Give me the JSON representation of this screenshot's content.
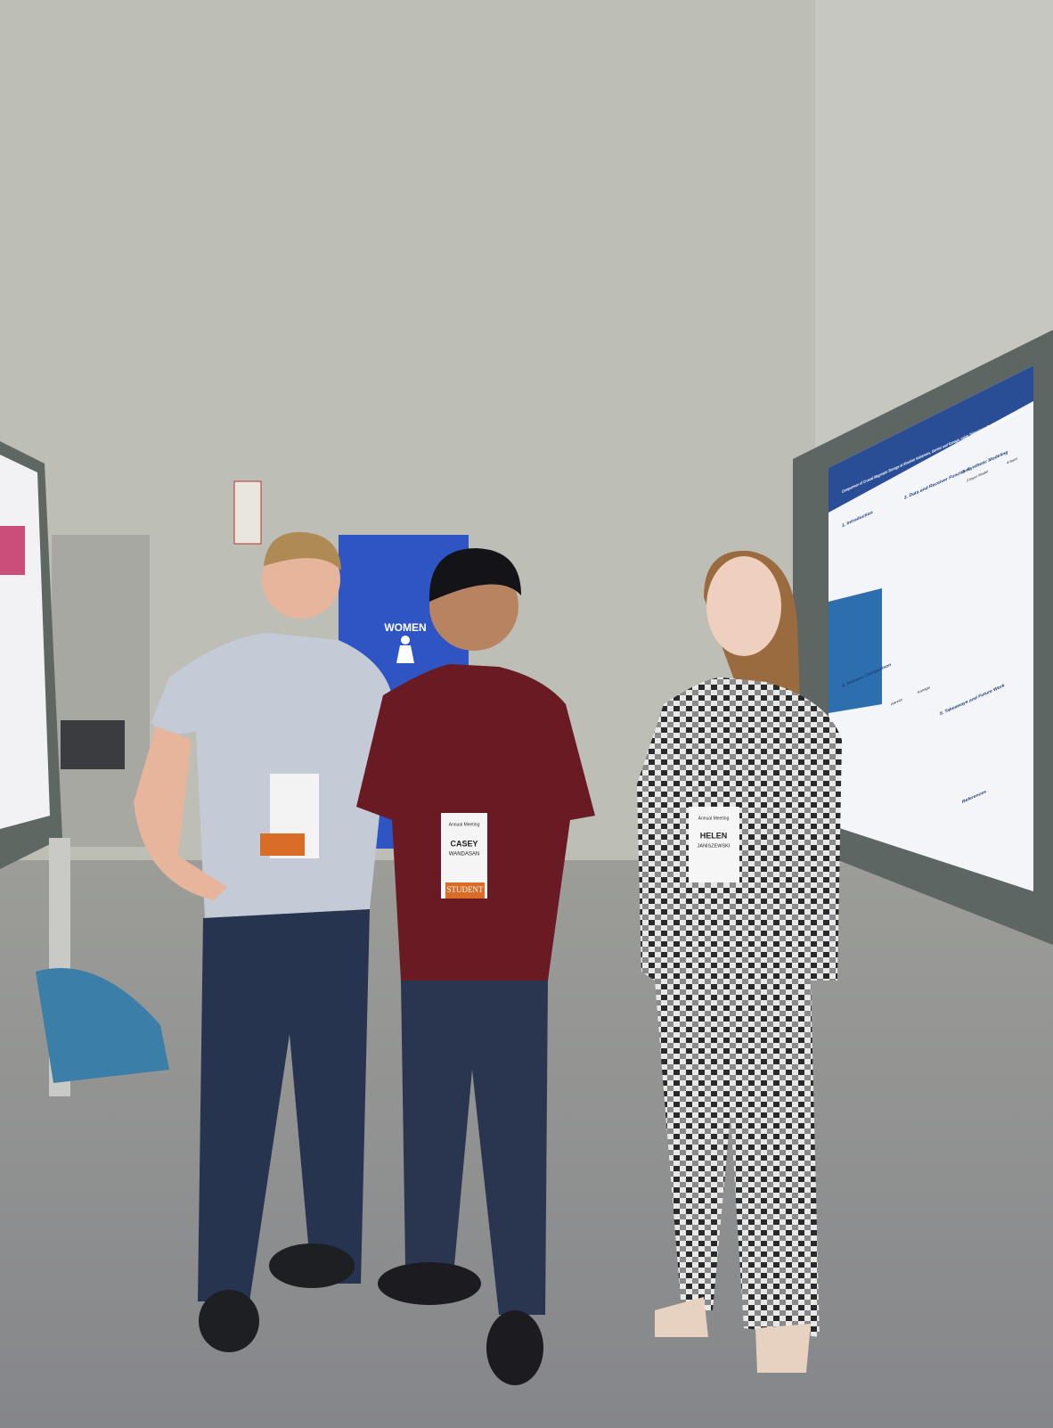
{
  "sign": {
    "label": "WOMEN"
  },
  "badges": [
    {
      "event": "Annual Meeting",
      "name": "CASEY",
      "surname": "WANDASAN",
      "ribbon": "STUDENT"
    },
    {
      "event": "Annual Meeting",
      "name": "HELEN",
      "surname": "JANISZEWSKI"
    }
  ],
  "poster": {
    "title": "Comparison of Crustal Magmatic Storage at Aleutian Volcanoes, Gareloi and Kanaga, using Teleseismic Receiver Function Analysis",
    "sections": [
      "1. Introduction",
      "2. Data and Receiver Functions",
      "3. Synthetic Modeling",
      "4. Volcano Comparison",
      "5. Takeaways and Future Work",
      "References"
    ],
    "labels": [
      "2-layer Model",
      "4-layer",
      "Gareloi",
      "Kanaga"
    ]
  }
}
